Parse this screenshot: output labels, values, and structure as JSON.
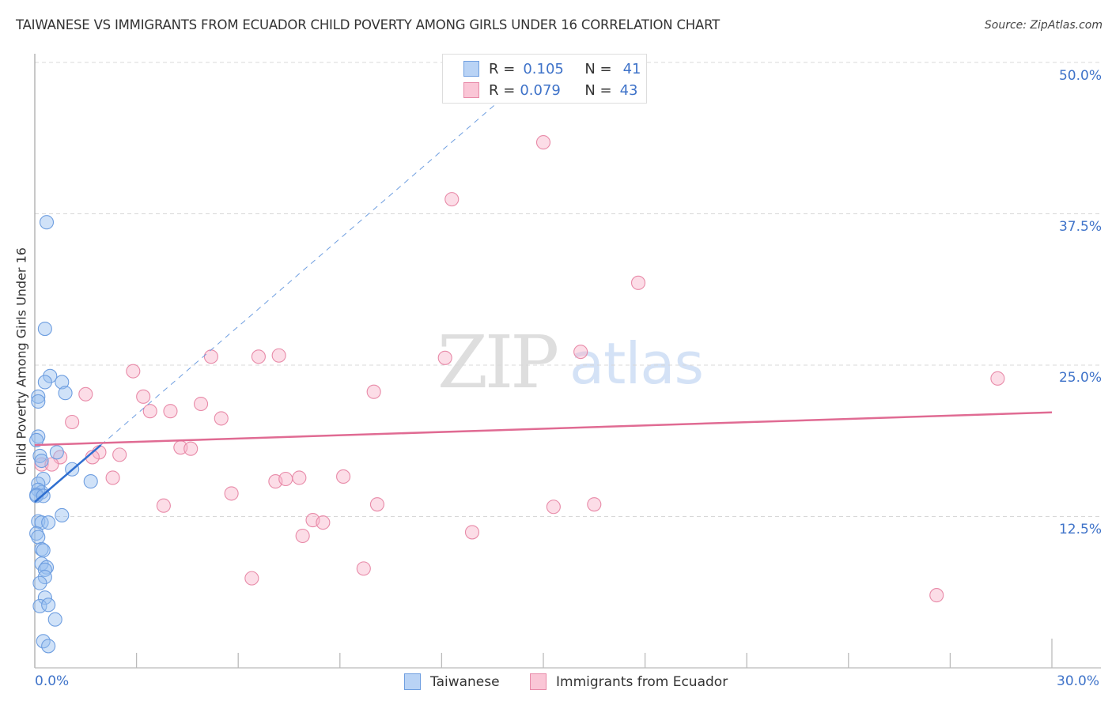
{
  "header": {
    "title": "TAIWANESE VS IMMIGRANTS FROM ECUADOR CHILD POVERTY AMONG GIRLS UNDER 16 CORRELATION CHART",
    "source": "Source: ZipAtlas.com"
  },
  "watermark": {
    "zip": "ZIP",
    "atlas": "atlas"
  },
  "legend": {
    "series": [
      {
        "name": "Taiwanese",
        "r_label": "R =",
        "r_value": "0.105",
        "n_label": "N =",
        "n_value": "41",
        "fill": "#b9d3f5",
        "stroke": "#6e9ee0"
      },
      {
        "name": "Immigrants from Ecuador",
        "r_label": "R =",
        "r_value": "0.079",
        "n_label": "N =",
        "n_value": "43",
        "fill": "#fac6d6",
        "stroke": "#e88aa8"
      }
    ]
  },
  "axes": {
    "ylabel": "Child Poverty Among Girls Under 16",
    "y_ticks": [
      "50.0%",
      "37.5%",
      "25.0%",
      "12.5%"
    ],
    "x_ticks": [
      "0.0%",
      "30.0%"
    ]
  },
  "chart_data": {
    "type": "scatter",
    "title": "TAIWANESE VS IMMIGRANTS FROM ECUADOR CHILD POVERTY AMONG GIRLS UNDER 16 CORRELATION CHART",
    "xlabel": "",
    "ylabel": "Child Poverty Among Girls Under 16",
    "xlim": [
      0,
      30
    ],
    "ylim": [
      0,
      50
    ],
    "x_tick_labels": [
      "0.0%",
      "30.0%"
    ],
    "y_tick_labels": [
      "12.5%",
      "25.0%",
      "37.5%",
      "50.0%"
    ],
    "grid": true,
    "legend_position": "bottom",
    "series": [
      {
        "name": "Taiwanese",
        "color": "#6e9ee0",
        "r": 0.105,
        "n": 41,
        "points": [
          [
            0.35,
            36.8
          ],
          [
            0.3,
            28.0
          ],
          [
            0.45,
            24.1
          ],
          [
            0.3,
            23.6
          ],
          [
            0.8,
            23.6
          ],
          [
            0.9,
            22.7
          ],
          [
            0.1,
            22.4
          ],
          [
            0.1,
            22.0
          ],
          [
            0.1,
            19.1
          ],
          [
            0.05,
            18.8
          ],
          [
            0.15,
            17.5
          ],
          [
            0.2,
            17.1
          ],
          [
            0.65,
            17.8
          ],
          [
            1.1,
            16.4
          ],
          [
            0.25,
            15.6
          ],
          [
            0.1,
            15.2
          ],
          [
            1.65,
            15.4
          ],
          [
            0.2,
            14.5
          ],
          [
            0.1,
            14.7
          ],
          [
            0.05,
            14.3
          ],
          [
            0.05,
            14.2
          ],
          [
            0.25,
            14.2
          ],
          [
            0.8,
            12.6
          ],
          [
            0.1,
            12.1
          ],
          [
            0.2,
            12.0
          ],
          [
            0.4,
            12.0
          ],
          [
            0.05,
            11.1
          ],
          [
            0.1,
            10.8
          ],
          [
            0.2,
            9.8
          ],
          [
            0.25,
            9.7
          ],
          [
            0.2,
            8.6
          ],
          [
            0.35,
            8.3
          ],
          [
            0.3,
            8.1
          ],
          [
            0.3,
            7.5
          ],
          [
            0.15,
            7.0
          ],
          [
            0.3,
            5.8
          ],
          [
            0.15,
            5.1
          ],
          [
            0.4,
            5.2
          ],
          [
            0.6,
            4.0
          ],
          [
            0.25,
            2.2
          ],
          [
            0.4,
            1.8
          ]
        ],
        "trend": {
          "x": [
            0,
            1.95
          ],
          "y": [
            13.7,
            18.4
          ],
          "dashed_extension_to": [
            13.9,
            47.3
          ]
        }
      },
      {
        "name": "Immigrants from Ecuador",
        "color": "#e88aa8",
        "r": 0.079,
        "n": 43,
        "points": [
          [
            15.0,
            43.4
          ],
          [
            12.3,
            38.7
          ],
          [
            17.8,
            31.8
          ],
          [
            16.1,
            26.1
          ],
          [
            12.1,
            25.6
          ],
          [
            5.2,
            25.7
          ],
          [
            6.6,
            25.7
          ],
          [
            7.2,
            25.8
          ],
          [
            2.9,
            24.5
          ],
          [
            28.4,
            23.9
          ],
          [
            1.5,
            22.6
          ],
          [
            10.0,
            22.8
          ],
          [
            3.2,
            22.4
          ],
          [
            4.9,
            21.8
          ],
          [
            3.4,
            21.2
          ],
          [
            4.0,
            21.2
          ],
          [
            5.5,
            20.6
          ],
          [
            1.1,
            20.3
          ],
          [
            4.3,
            18.2
          ],
          [
            4.6,
            18.1
          ],
          [
            1.9,
            17.8
          ],
          [
            2.5,
            17.6
          ],
          [
            1.7,
            17.4
          ],
          [
            0.75,
            17.4
          ],
          [
            0.2,
            16.8
          ],
          [
            0.5,
            16.8
          ],
          [
            2.3,
            15.7
          ],
          [
            7.1,
            15.4
          ],
          [
            7.4,
            15.6
          ],
          [
            7.8,
            15.7
          ],
          [
            9.1,
            15.8
          ],
          [
            5.8,
            14.4
          ],
          [
            3.8,
            13.4
          ],
          [
            10.1,
            13.5
          ],
          [
            15.3,
            13.3
          ],
          [
            16.5,
            13.5
          ],
          [
            8.2,
            12.2
          ],
          [
            8.5,
            12.0
          ],
          [
            12.9,
            11.2
          ],
          [
            7.9,
            10.9
          ],
          [
            9.7,
            8.2
          ],
          [
            6.4,
            7.4
          ],
          [
            26.6,
            6.0
          ]
        ],
        "trend": {
          "x": [
            0,
            30
          ],
          "y": [
            18.4,
            21.1
          ]
        }
      }
    ]
  }
}
